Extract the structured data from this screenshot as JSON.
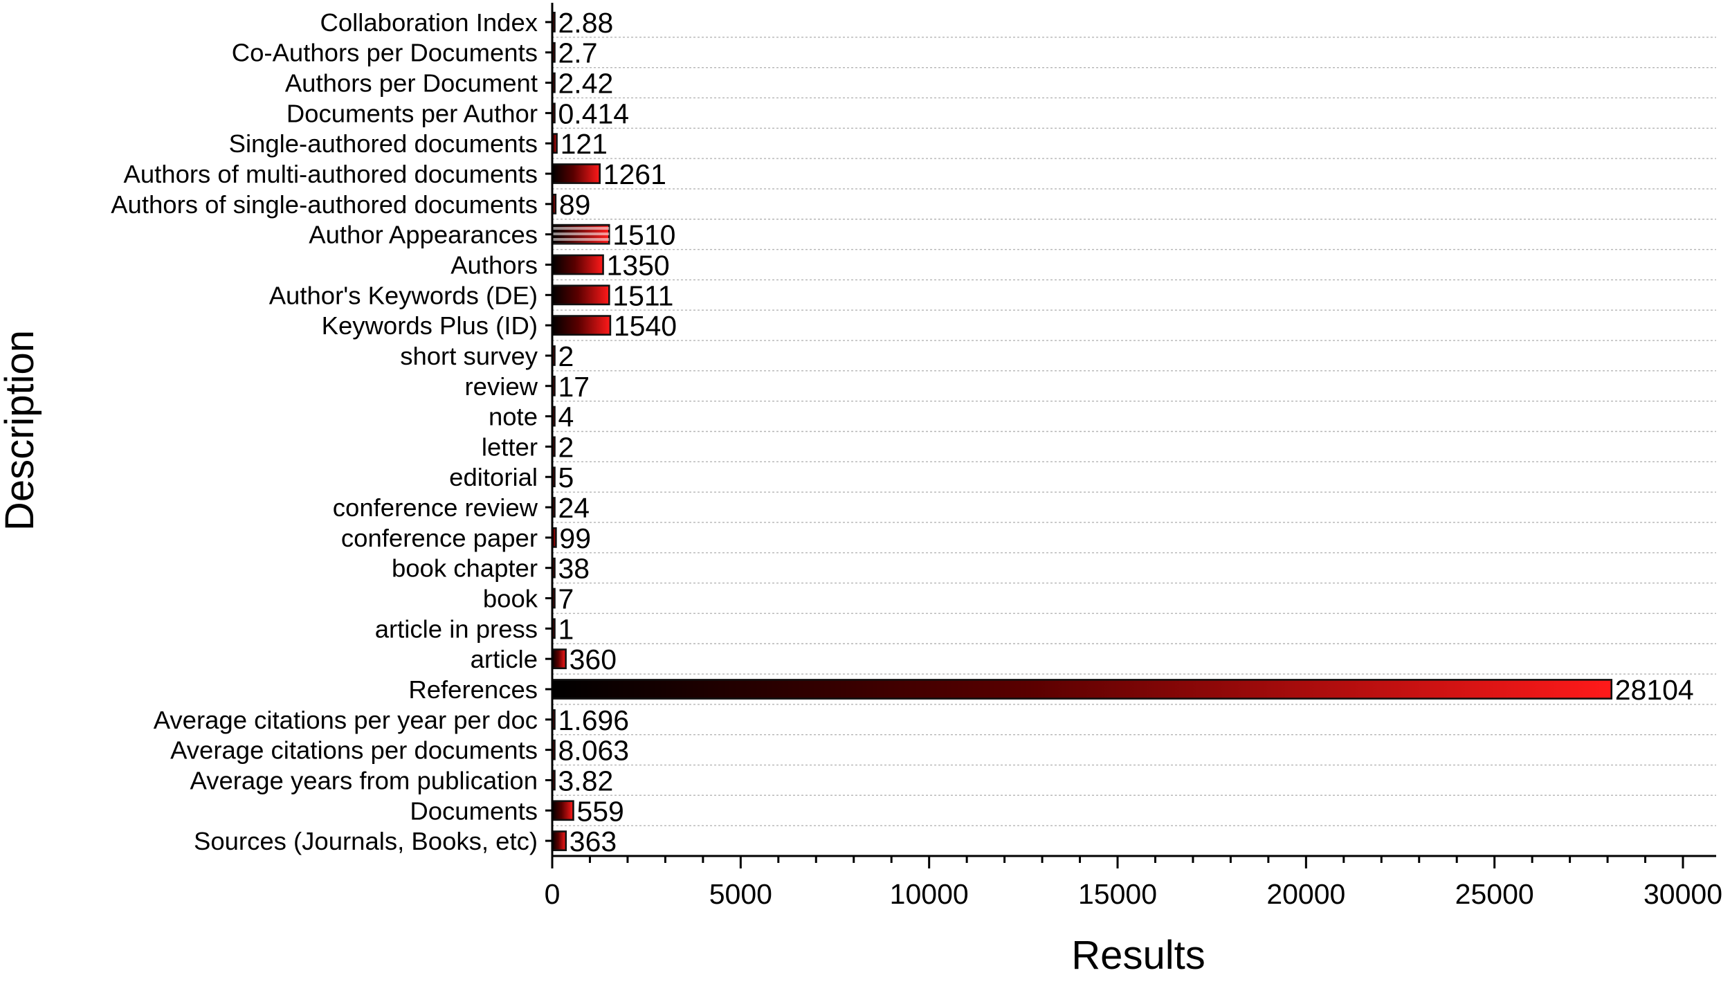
{
  "chart_data": {
    "type": "bar",
    "orientation": "horizontal",
    "xlabel": "Results",
    "ylabel": "Description",
    "xlim": [
      0,
      30000
    ],
    "xticks": [
      0,
      5000,
      10000,
      15000,
      20000,
      25000,
      30000
    ],
    "grid": "horizontal dotted lines",
    "colors": {
      "bar_start": "#000000",
      "bar_end": "#ff1a1a",
      "bar_outline": "#111111"
    },
    "bars": [
      {
        "label": "Collaboration Index",
        "value": 2.88,
        "value_label": "2.88"
      },
      {
        "label": "Co-Authors per Documents",
        "value": 2.7,
        "value_label": "2.7"
      },
      {
        "label": "Authors per Document",
        "value": 2.42,
        "value_label": "2.42"
      },
      {
        "label": "Documents per Author",
        "value": 0.414,
        "value_label": "0.414"
      },
      {
        "label": "Single-authored documents",
        "value": 121,
        "value_label": "121"
      },
      {
        "label": "Authors of multi-authored documents",
        "value": 1261,
        "value_label": "1261"
      },
      {
        "label": "Authors of single-authored documents",
        "value": 89,
        "value_label": "89"
      },
      {
        "label": "Author Appearances",
        "value": 1510,
        "value_label": "1510",
        "pattern": "striped"
      },
      {
        "label": "Authors",
        "value": 1350,
        "value_label": "1350"
      },
      {
        "label": "Author's Keywords (DE)",
        "value": 1511,
        "value_label": "1511"
      },
      {
        "label": "Keywords Plus (ID)",
        "value": 1540,
        "value_label": "1540"
      },
      {
        "label": "short survey",
        "value": 2,
        "value_label": "2"
      },
      {
        "label": "review",
        "value": 17,
        "value_label": "17"
      },
      {
        "label": "note",
        "value": 4,
        "value_label": "4"
      },
      {
        "label": "letter",
        "value": 2,
        "value_label": "2"
      },
      {
        "label": "editorial",
        "value": 5,
        "value_label": "5"
      },
      {
        "label": "conference review",
        "value": 24,
        "value_label": "24"
      },
      {
        "label": "conference paper",
        "value": 99,
        "value_label": "99"
      },
      {
        "label": "book chapter",
        "value": 38,
        "value_label": "38"
      },
      {
        "label": "book",
        "value": 7,
        "value_label": "7"
      },
      {
        "label": "article in press",
        "value": 1,
        "value_label": "1"
      },
      {
        "label": "article",
        "value": 360,
        "value_label": "360"
      },
      {
        "label": "References",
        "value": 28104,
        "value_label": "28104"
      },
      {
        "label": "Average citations per year per doc",
        "value": 1.696,
        "value_label": "1.696"
      },
      {
        "label": "Average citations per documents",
        "value": 8.063,
        "value_label": "8.063"
      },
      {
        "label": "Average years from publication",
        "value": 3.82,
        "value_label": "3.82"
      },
      {
        "label": "Documents",
        "value": 559,
        "value_label": "559"
      },
      {
        "label": "Sources (Journals, Books, etc)",
        "value": 363,
        "value_label": "363"
      }
    ]
  }
}
